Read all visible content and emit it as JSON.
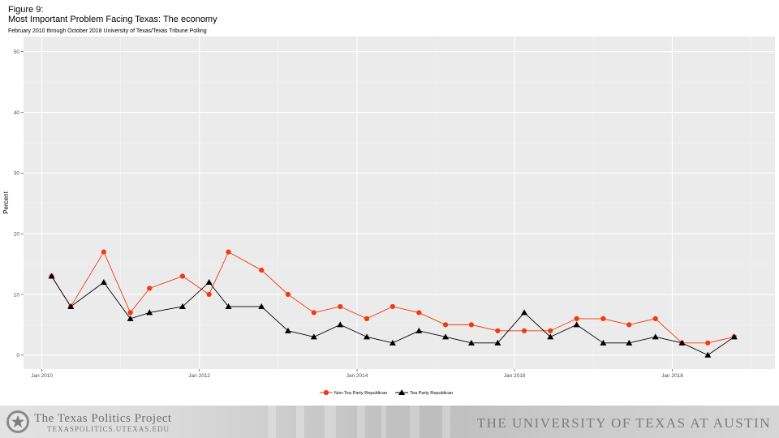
{
  "header": {
    "figure_label": "Figure 9:",
    "title": "Most Important Problem Facing Texas: The economy",
    "subtitle": "February 2010 through October 2018 University of Texas/Texas Tribune Polling"
  },
  "chart_data": {
    "type": "line",
    "ylabel": "Percent",
    "xlabel": "",
    "ylim": [
      -2.3,
      52.5
    ],
    "yticks": [
      0,
      10,
      20,
      30,
      40,
      50
    ],
    "xlim": [
      "2009-10-08",
      "2019-04-22"
    ],
    "xticks": [
      {
        "label": "Jan 2010",
        "date": "2010-01-01"
      },
      {
        "label": "Jan 2012",
        "date": "2012-01-01"
      },
      {
        "label": "Jan 2014",
        "date": "2014-01-01"
      },
      {
        "label": "Jan 2016",
        "date": "2016-01-01"
      },
      {
        "label": "Jan 2018",
        "date": "2018-01-01"
      }
    ],
    "grid": true,
    "legend_position": "bottom",
    "dates": [
      "2010-02-15",
      "2010-05-15",
      "2010-10-15",
      "2011-02-15",
      "2011-05-15",
      "2011-10-15",
      "2012-02-15",
      "2012-05-15",
      "2012-10-15",
      "2013-02-15",
      "2013-06-15",
      "2013-10-15",
      "2014-02-15",
      "2014-06-15",
      "2014-10-15",
      "2015-02-15",
      "2015-06-15",
      "2015-10-15",
      "2016-02-15",
      "2016-06-15",
      "2016-10-15",
      "2017-02-15",
      "2017-06-15",
      "2017-10-15",
      "2018-02-15",
      "2018-06-15",
      "2018-10-15"
    ],
    "series": [
      {
        "name": "Non-Tea Party Republican",
        "color": "#f4380e",
        "marker": "circle",
        "values": [
          13,
          8,
          17,
          7,
          11,
          13,
          10,
          17,
          14,
          10,
          7,
          8,
          6,
          8,
          7,
          5,
          5,
          4,
          4,
          4,
          6,
          6,
          5,
          6,
          2,
          2,
          3
        ]
      },
      {
        "name": "Tea Party Republican",
        "color": "#000000",
        "marker": "triangle",
        "values": [
          13,
          8,
          12,
          6,
          7,
          8,
          12,
          8,
          8,
          4,
          3,
          5,
          3,
          2,
          4,
          3,
          2,
          2,
          7,
          3,
          5,
          2,
          2,
          3,
          2,
          0,
          3
        ]
      }
    ]
  },
  "footer": {
    "tpp_name": "The Texas Politics Project",
    "tpp_url": "TEXASPOLITICS.UTEXAS.EDU",
    "ut_name": "THE UNIVERSITY OF TEXAS AT AUSTIN"
  }
}
